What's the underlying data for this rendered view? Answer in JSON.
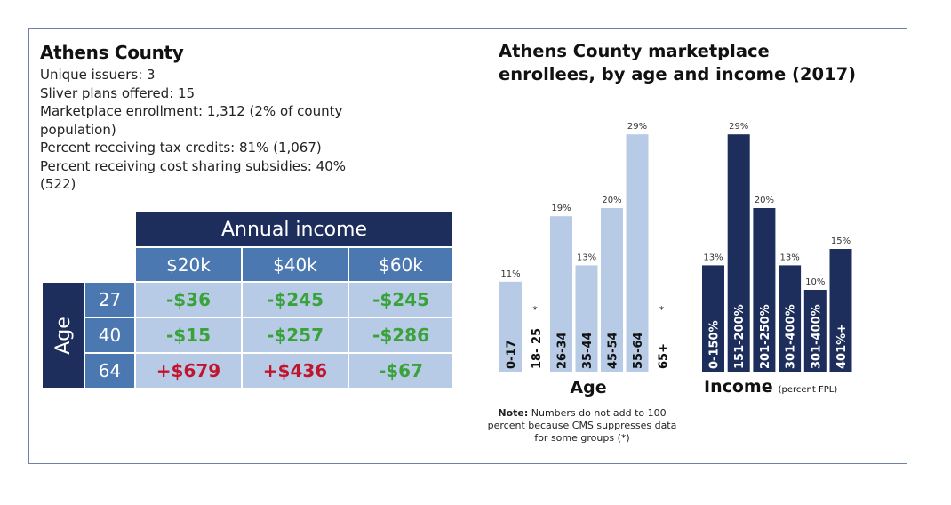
{
  "county": {
    "title": "Athens County",
    "stats": [
      "Unique issuers: 3",
      "Sliver plans offered: 15",
      "Marketplace enrollment: 1,312 (2% of county population)",
      "Percent receiving tax credits: 81% (1,067)",
      "Percent receiving cost sharing subsidies: 40% (522)"
    ]
  },
  "table": {
    "column_group_label": "Annual income",
    "row_group_label": "Age",
    "columns": [
      "$20k",
      "$40k",
      "$60k"
    ],
    "rows": [
      {
        "age": "27",
        "values": [
          "-$36",
          "-$245",
          "-$245"
        ],
        "signs": [
          "neg",
          "neg",
          "neg"
        ]
      },
      {
        "age": "40",
        "values": [
          "-$15",
          "-$257",
          "-$286"
        ],
        "signs": [
          "neg",
          "neg",
          "neg"
        ]
      },
      {
        "age": "64",
        "values": [
          "+$679",
          "+$436",
          "-$67"
        ],
        "signs": [
          "pos",
          "pos",
          "neg"
        ]
      }
    ],
    "colors": {
      "dark": "#1d2e5c",
      "mid": "#4b78b0",
      "cell": "#b8cbe6",
      "negative": "#3aa23a",
      "positive": "#c0152f"
    }
  },
  "chart_title": "Athens County marketplace enrollees, by age and income (2017)",
  "chart_data": [
    {
      "type": "bar",
      "xlabel": "Age",
      "categories": [
        "0-17",
        "18- 25",
        "26-34",
        "35-44",
        "45-54",
        "55-64",
        "65+"
      ],
      "values": [
        11,
        null,
        19,
        13,
        20,
        29,
        null
      ],
      "value_labels": [
        "11%",
        "*",
        "19%",
        "13%",
        "20%",
        "29%",
        "*"
      ],
      "color": "#b8cbe6",
      "ylim": [
        0,
        30
      ]
    },
    {
      "type": "bar",
      "xlabel": "Income",
      "xlabel_note": "(percent FPL)",
      "categories": [
        "0-150%",
        "151-200%",
        "201-250%",
        "301-400%",
        "301-400%",
        "401%+"
      ],
      "values": [
        13,
        29,
        20,
        13,
        10,
        15
      ],
      "value_labels": [
        "13%",
        "29%",
        "20%",
        "13%",
        "10%",
        "15%"
      ],
      "color": "#1d2e5c",
      "ylim": [
        0,
        30
      ]
    }
  ],
  "note": {
    "bold": "Note:",
    "text": " Numbers do not add to 100 percent because CMS suppresses data for some groups (*)"
  }
}
